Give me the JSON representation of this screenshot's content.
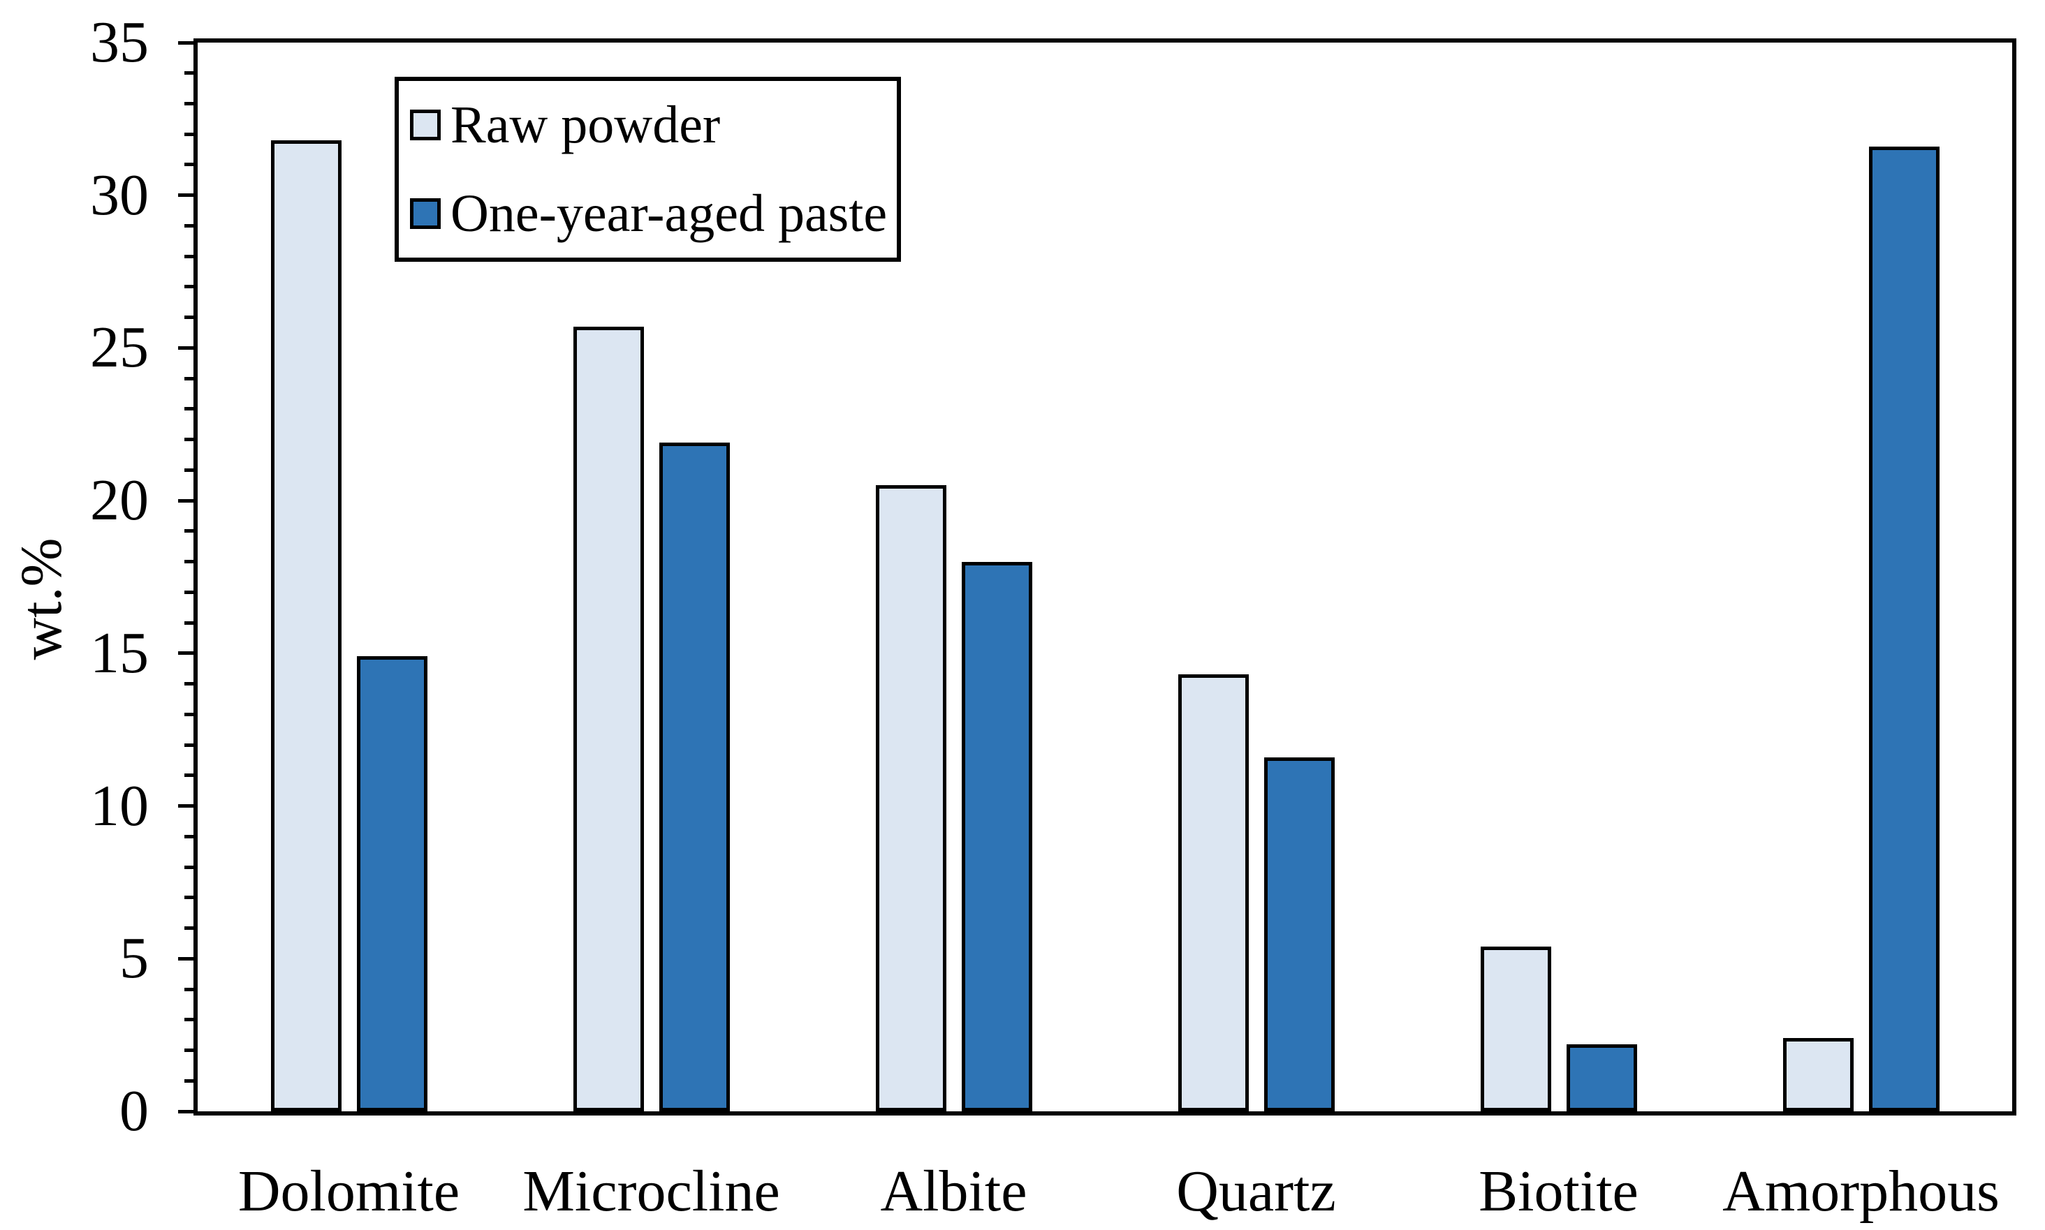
{
  "chart_data": {
    "type": "bar",
    "title": "",
    "xlabel": "",
    "ylabel": "wt.%",
    "categories": [
      "Dolomite",
      "Microcline",
      "Albite",
      "Quartz",
      "Biotite",
      "Amorphous"
    ],
    "series": [
      {
        "name": "Raw powder",
        "color": "#dce6f2",
        "values": [
          31.8,
          25.7,
          20.5,
          14.3,
          5.4,
          2.4
        ]
      },
      {
        "name": "One-year-aged paste",
        "color": "#2e74b5",
        "values": [
          14.9,
          21.9,
          18.0,
          11.6,
          2.2,
          31.6
        ]
      }
    ],
    "ylim": [
      0,
      35
    ],
    "y_ticks": [
      0,
      5,
      10,
      15,
      20,
      25,
      30,
      35
    ],
    "y_minor_step": 1,
    "grid": false,
    "legend_position": "top-left",
    "bar_border_color": "#000000",
    "axis_color": "#000000",
    "background_color": "#ffffff"
  }
}
